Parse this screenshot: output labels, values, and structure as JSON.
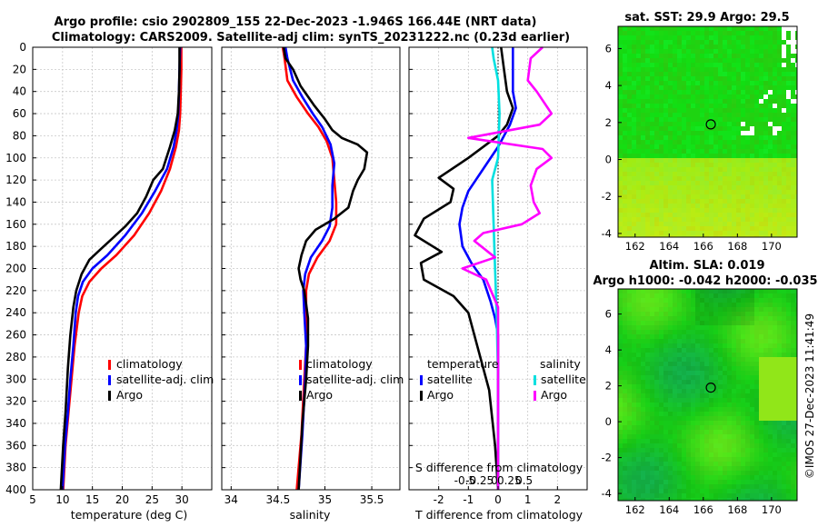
{
  "title_line1": "Argo profile: csio 2902809_155 22-Dec-2023 -1.946S 166.44E (NRT data)",
  "title_line2": "Climatology: CARS2009. Satellite-adj clim: synTS_20231222.nc (0.23d earlier)",
  "depth_ticks": [
    0,
    20,
    40,
    60,
    80,
    100,
    120,
    140,
    160,
    180,
    200,
    220,
    240,
    260,
    280,
    300,
    320,
    340,
    360,
    380,
    400
  ],
  "chart_data": [
    {
      "type": "line",
      "xlabel": "temperature (deg C)",
      "xlim": [
        5,
        35
      ],
      "xticks": [
        5,
        10,
        15,
        20,
        25,
        30
      ],
      "ylim": [
        0,
        400
      ],
      "legend_position": "right-middle",
      "legend_labels": [
        "climatology",
        "satellite-adj. clim",
        "Argo"
      ],
      "series": [
        {
          "name": "climatology",
          "color": "#ff0000",
          "points": [
            [
              29.9,
              0
            ],
            [
              29.9,
              20
            ],
            [
              29.8,
              40
            ],
            [
              29.7,
              60
            ],
            [
              29.5,
              75
            ],
            [
              29.0,
              90
            ],
            [
              28.0,
              110
            ],
            [
              26.5,
              130
            ],
            [
              24.5,
              150
            ],
            [
              22.0,
              170
            ],
            [
              19.0,
              188
            ],
            [
              16.5,
              200
            ],
            [
              14.5,
              212
            ],
            [
              13.3,
              225
            ],
            [
              12.7,
              240
            ],
            [
              12.0,
              270
            ],
            [
              11.5,
              300
            ],
            [
              11.0,
              330
            ],
            [
              10.5,
              360
            ],
            [
              10.1,
              400
            ]
          ]
        },
        {
          "name": "satellite-adj. clim",
          "color": "#0000ff",
          "points": [
            [
              29.7,
              0
            ],
            [
              29.6,
              20
            ],
            [
              29.5,
              40
            ],
            [
              29.4,
              60
            ],
            [
              29.1,
              75
            ],
            [
              28.6,
              90
            ],
            [
              27.5,
              110
            ],
            [
              25.5,
              130
            ],
            [
              23.3,
              150
            ],
            [
              20.5,
              170
            ],
            [
              17.5,
              188
            ],
            [
              15.0,
              200
            ],
            [
              13.4,
              212
            ],
            [
              12.6,
              225
            ],
            [
              12.2,
              240
            ],
            [
              11.8,
              270
            ],
            [
              11.3,
              300
            ],
            [
              10.9,
              330
            ],
            [
              10.4,
              360
            ],
            [
              10.0,
              400
            ]
          ]
        },
        {
          "name": "Argo",
          "color": "#000000",
          "points": [
            [
              29.6,
              0
            ],
            [
              29.6,
              20
            ],
            [
              29.5,
              40
            ],
            [
              29.3,
              60
            ],
            [
              28.8,
              75
            ],
            [
              28.0,
              90
            ],
            [
              26.8,
              110
            ],
            [
              25.2,
              120
            ],
            [
              24.0,
              135
            ],
            [
              22.5,
              150
            ],
            [
              20.5,
              162
            ],
            [
              18.5,
              172
            ],
            [
              16.5,
              182
            ],
            [
              14.5,
              192
            ],
            [
              13.2,
              205
            ],
            [
              12.3,
              220
            ],
            [
              11.8,
              235
            ],
            [
              11.3,
              260
            ],
            [
              10.9,
              290
            ],
            [
              10.5,
              330
            ],
            [
              10.1,
              360
            ],
            [
              9.7,
              400
            ]
          ]
        }
      ]
    },
    {
      "type": "line",
      "xlabel": "salinity",
      "xlim": [
        33.9,
        35.8
      ],
      "xticks": [
        34,
        34.5,
        35,
        35.5
      ],
      "ylim": [
        0,
        400
      ],
      "legend_position": "right-middle",
      "legend_labels": [
        "climatology",
        "satellite-adj. clim",
        "Argo"
      ],
      "series": [
        {
          "name": "climatology",
          "color": "#ff0000",
          "points": [
            [
              34.55,
              0
            ],
            [
              34.57,
              10
            ],
            [
              34.6,
              30
            ],
            [
              34.7,
              45
            ],
            [
              34.82,
              60
            ],
            [
              34.93,
              72
            ],
            [
              35.02,
              85
            ],
            [
              35.08,
              100
            ],
            [
              35.1,
              120
            ],
            [
              35.12,
              140
            ],
            [
              35.12,
              160
            ],
            [
              35.05,
              175
            ],
            [
              34.92,
              190
            ],
            [
              34.83,
              205
            ],
            [
              34.8,
              220
            ],
            [
              34.8,
              240
            ],
            [
              34.8,
              270
            ],
            [
              34.78,
              300
            ],
            [
              34.75,
              350
            ],
            [
              34.7,
              400
            ]
          ]
        },
        {
          "name": "satellite-adj. clim",
          "color": "#0000ff",
          "points": [
            [
              34.58,
              0
            ],
            [
              34.6,
              10
            ],
            [
              34.66,
              30
            ],
            [
              34.76,
              45
            ],
            [
              34.87,
              60
            ],
            [
              34.97,
              72
            ],
            [
              35.06,
              88
            ],
            [
              35.1,
              105
            ],
            [
              35.08,
              125
            ],
            [
              35.08,
              145
            ],
            [
              35.05,
              162
            ],
            [
              34.97,
              175
            ],
            [
              34.85,
              190
            ],
            [
              34.79,
              205
            ],
            [
              34.77,
              220
            ],
            [
              34.78,
              240
            ],
            [
              34.8,
              270
            ],
            [
              34.79,
              300
            ],
            [
              34.76,
              350
            ],
            [
              34.72,
              400
            ]
          ]
        },
        {
          "name": "Argo",
          "color": "#000000",
          "points": [
            [
              34.56,
              0
            ],
            [
              34.58,
              10
            ],
            [
              34.66,
              20
            ],
            [
              34.74,
              35
            ],
            [
              34.88,
              52
            ],
            [
              35.0,
              65
            ],
            [
              35.08,
              75
            ],
            [
              35.18,
              82
            ],
            [
              35.35,
              88
            ],
            [
              35.45,
              95
            ],
            [
              35.42,
              110
            ],
            [
              35.35,
              120
            ],
            [
              35.3,
              130
            ],
            [
              35.25,
              145
            ],
            [
              35.1,
              155
            ],
            [
              34.9,
              165
            ],
            [
              34.8,
              175
            ],
            [
              34.75,
              188
            ],
            [
              34.72,
              200
            ],
            [
              34.74,
              210
            ],
            [
              34.78,
              220
            ],
            [
              34.8,
              232
            ],
            [
              34.82,
              245
            ],
            [
              34.82,
              270
            ],
            [
              34.8,
              300
            ],
            [
              34.76,
              340
            ],
            [
              34.72,
              400
            ]
          ]
        }
      ]
    },
    {
      "type": "line",
      "xlabel": "T difference from climatology",
      "xlim": [
        -3,
        3
      ],
      "xticks": [
        -2,
        -1,
        0,
        1,
        2
      ],
      "secondary_xlabel": "S difference from climatology",
      "secondary_xticks": [
        "-0.5",
        "-0.25",
        "0",
        "0.25",
        "0.5"
      ],
      "ylim": [
        0,
        400
      ],
      "legend_position": "right-middle",
      "legend_headers": [
        "temperature",
        "salinity"
      ],
      "legend_labels": [
        "satellite",
        "Argo",
        "satellite",
        "Argo"
      ],
      "series": [
        {
          "name": "temperature satellite",
          "color": "#0000ff",
          "points": [
            [
              0.5,
              0
            ],
            [
              0.5,
              20
            ],
            [
              0.5,
              40
            ],
            [
              0.6,
              55
            ],
            [
              0.4,
              70
            ],
            [
              0.0,
              90
            ],
            [
              -0.5,
              110
            ],
            [
              -1.0,
              130
            ],
            [
              -1.2,
              145
            ],
            [
              -1.3,
              160
            ],
            [
              -1.2,
              180
            ],
            [
              -0.9,
              195
            ],
            [
              -0.5,
              210
            ],
            [
              -0.25,
              230
            ],
            [
              -0.1,
              245
            ],
            [
              0.0,
              260
            ],
            [
              0.0,
              300
            ],
            [
              0.0,
              400
            ]
          ]
        },
        {
          "name": "temperature Argo",
          "color": "#000000",
          "points": [
            [
              0.1,
              0
            ],
            [
              0.2,
              20
            ],
            [
              0.3,
              40
            ],
            [
              0.5,
              55
            ],
            [
              0.3,
              70
            ],
            [
              0.0,
              80
            ],
            [
              -1.0,
              100
            ],
            [
              -2.0,
              118
            ],
            [
              -1.5,
              128
            ],
            [
              -1.6,
              140
            ],
            [
              -2.5,
              155
            ],
            [
              -2.8,
              170
            ],
            [
              -1.9,
              185
            ],
            [
              -2.6,
              195
            ],
            [
              -2.5,
              210
            ],
            [
              -1.5,
              225
            ],
            [
              -1.0,
              240
            ],
            [
              -0.7,
              270
            ],
            [
              -0.3,
              310
            ],
            [
              -0.1,
              360
            ],
            [
              0.0,
              400
            ]
          ]
        },
        {
          "name": "salinity satellite",
          "color": "#00e0e0",
          "points": [
            [
              -0.2,
              0
            ],
            [
              -0.15,
              10
            ],
            [
              0.0,
              30
            ],
            [
              0.05,
              60
            ],
            [
              0.0,
              100
            ],
            [
              -0.2,
              120
            ],
            [
              -0.15,
              160
            ],
            [
              -0.1,
              200
            ],
            [
              -0.05,
              240
            ],
            [
              0.0,
              300
            ],
            [
              0.0,
              400
            ]
          ]
        },
        {
          "name": "salinity Argo",
          "color": "#ff00ff",
          "points": [
            [
              1.5,
              0
            ],
            [
              1.1,
              10
            ],
            [
              1.0,
              30
            ],
            [
              1.3,
              40
            ],
            [
              1.8,
              60
            ],
            [
              1.4,
              70
            ],
            [
              -1.0,
              82
            ],
            [
              1.5,
              92
            ],
            [
              1.8,
              100
            ],
            [
              1.3,
              110
            ],
            [
              1.1,
              125
            ],
            [
              1.2,
              140
            ],
            [
              1.4,
              150
            ],
            [
              0.8,
              160
            ],
            [
              -0.5,
              168
            ],
            [
              -0.8,
              175
            ],
            [
              -0.1,
              190
            ],
            [
              -1.2,
              200
            ],
            [
              -0.4,
              210
            ],
            [
              0.0,
              235
            ],
            [
              0.0,
              400
            ]
          ]
        }
      ]
    }
  ],
  "map1": {
    "title": "sat. SST: 29.9  Argo: 29.5",
    "xticks": [
      162,
      164,
      166,
      168,
      170
    ],
    "yticks": [
      6,
      4,
      2,
      0,
      -2,
      -4
    ],
    "xlim": [
      161,
      171.5
    ],
    "ylim": [
      -4.2,
      7.2
    ],
    "marker_lon": 166.44,
    "marker_lat": 1.9
  },
  "map2": {
    "title_line1": "Altim. SLA: 0.019",
    "title_line2": "Argo h1000: -0.042 h2000: -0.035",
    "xticks": [
      162,
      164,
      166,
      168,
      170
    ],
    "yticks": [
      6,
      4,
      2,
      0,
      -2,
      -4
    ],
    "xlim": [
      161,
      171.5
    ],
    "ylim": [
      -4.4,
      7.4
    ],
    "marker_lon": 166.44,
    "marker_lat": 1.9
  },
  "watermark": "©IMOS 27-Dec-2023 11:41:49"
}
